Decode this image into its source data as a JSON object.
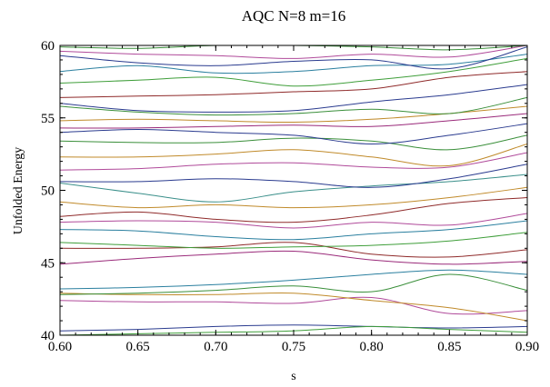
{
  "chart_data": {
    "type": "line",
    "title": "AQC N=8 m=16",
    "xlabel": "s",
    "ylabel": "Unfolded Energy",
    "xlim": [
      0.6,
      0.9
    ],
    "ylim": [
      40,
      60
    ],
    "grid": false,
    "legend": "none",
    "xticks": [
      "0.60",
      "0.65",
      "0.70",
      "0.75",
      "0.80",
      "0.85",
      "0.90"
    ],
    "yticks": [
      "40",
      "45",
      "50",
      "55",
      "60"
    ],
    "x": [
      0.6,
      0.65,
      0.7,
      0.75,
      0.8,
      0.85,
      0.9
    ],
    "series": [
      {
        "values": [
          40.3,
          40.4,
          40.6,
          40.7,
          40.6,
          40.5,
          40.6
        ],
        "color": "#2a3b8f"
      },
      {
        "values": [
          40.0,
          40.1,
          40.2,
          40.3,
          40.6,
          40.4,
          40.2
        ],
        "color": "#3f9e3a"
      },
      {
        "values": [
          42.4,
          42.3,
          42.3,
          42.2,
          42.6,
          41.5,
          41.7
        ],
        "color": "#b04a9a"
      },
      {
        "values": [
          42.9,
          42.8,
          42.8,
          42.9,
          42.4,
          41.9,
          41.0
        ],
        "color": "#c08a2a"
      },
      {
        "values": [
          42.8,
          42.9,
          43.1,
          43.4,
          43.0,
          44.2,
          43.1
        ],
        "color": "#3a8f3a"
      },
      {
        "values": [
          43.2,
          43.3,
          43.5,
          43.8,
          44.2,
          44.5,
          44.2
        ],
        "color": "#2a7f9f"
      },
      {
        "values": [
          44.9,
          45.3,
          45.6,
          45.8,
          45.2,
          44.9,
          45.1
        ],
        "color": "#9a2a7a"
      },
      {
        "values": [
          46.0,
          46.0,
          46.1,
          46.4,
          45.6,
          45.4,
          45.9
        ],
        "color": "#8f2a2a"
      },
      {
        "values": [
          46.4,
          46.2,
          46.0,
          46.1,
          46.2,
          46.5,
          47.1
        ],
        "color": "#3f9e3a"
      },
      {
        "values": [
          47.3,
          47.2,
          46.8,
          46.6,
          47.0,
          47.3,
          47.9
        ],
        "color": "#2a7f9f"
      },
      {
        "values": [
          47.8,
          47.9,
          47.8,
          47.4,
          47.8,
          47.6,
          48.4
        ],
        "color": "#b04a9a"
      },
      {
        "values": [
          48.2,
          48.5,
          48.0,
          47.8,
          48.3,
          49.1,
          49.5
        ],
        "color": "#8f2a2a"
      },
      {
        "values": [
          49.2,
          48.8,
          49.0,
          48.8,
          49.0,
          49.5,
          50.2
        ],
        "color": "#c08a2a"
      },
      {
        "values": [
          50.5,
          49.8,
          49.2,
          49.9,
          50.3,
          50.6,
          51.1
        ],
        "color": "#3a8f8a"
      },
      {
        "values": [
          50.6,
          50.6,
          50.8,
          50.6,
          50.2,
          50.8,
          51.8
        ],
        "color": "#2a3b8f"
      },
      {
        "values": [
          51.4,
          51.5,
          51.8,
          51.9,
          51.6,
          51.6,
          52.6
        ],
        "color": "#b04a9a"
      },
      {
        "values": [
          52.3,
          52.3,
          52.5,
          52.8,
          52.3,
          51.7,
          53.2
        ],
        "color": "#c08a2a"
      },
      {
        "values": [
          53.4,
          53.3,
          53.3,
          53.6,
          53.4,
          52.8,
          53.8
        ],
        "color": "#3a8f3a"
      },
      {
        "values": [
          54.0,
          54.2,
          54.0,
          53.8,
          53.2,
          53.8,
          54.6
        ],
        "color": "#2a3b8f"
      },
      {
        "values": [
          54.3,
          54.3,
          54.4,
          54.5,
          54.4,
          54.8,
          55.3
        ],
        "color": "#9a2a7a"
      },
      {
        "values": [
          54.8,
          54.9,
          54.8,
          54.7,
          54.9,
          55.3,
          55.8
        ],
        "color": "#c08a2a"
      },
      {
        "values": [
          55.8,
          55.4,
          55.2,
          55.3,
          55.6,
          55.3,
          56.4
        ],
        "color": "#3a8f3a"
      },
      {
        "values": [
          56.0,
          55.5,
          55.4,
          55.5,
          56.1,
          56.6,
          57.3
        ],
        "color": "#2a3b8f"
      },
      {
        "values": [
          56.4,
          56.5,
          56.6,
          56.8,
          57.0,
          57.8,
          58.2
        ],
        "color": "#8f2a2a"
      },
      {
        "values": [
          57.4,
          57.6,
          57.8,
          57.2,
          57.6,
          58.2,
          59.1
        ],
        "color": "#3f9e3a"
      },
      {
        "values": [
          58.2,
          58.6,
          58.1,
          58.2,
          58.6,
          58.7,
          59.4
        ],
        "color": "#2a7f9f"
      },
      {
        "values": [
          59.3,
          58.8,
          58.6,
          58.9,
          59.0,
          58.4,
          59.9
        ],
        "color": "#2a3b8f"
      },
      {
        "values": [
          59.6,
          59.4,
          59.3,
          59.1,
          59.4,
          59.2,
          60.0
        ],
        "color": "#b04a9a"
      },
      {
        "values": [
          59.9,
          59.8,
          60.0,
          60.0,
          59.9,
          59.7,
          60.0
        ],
        "color": "#3a8f3a"
      }
    ]
  }
}
